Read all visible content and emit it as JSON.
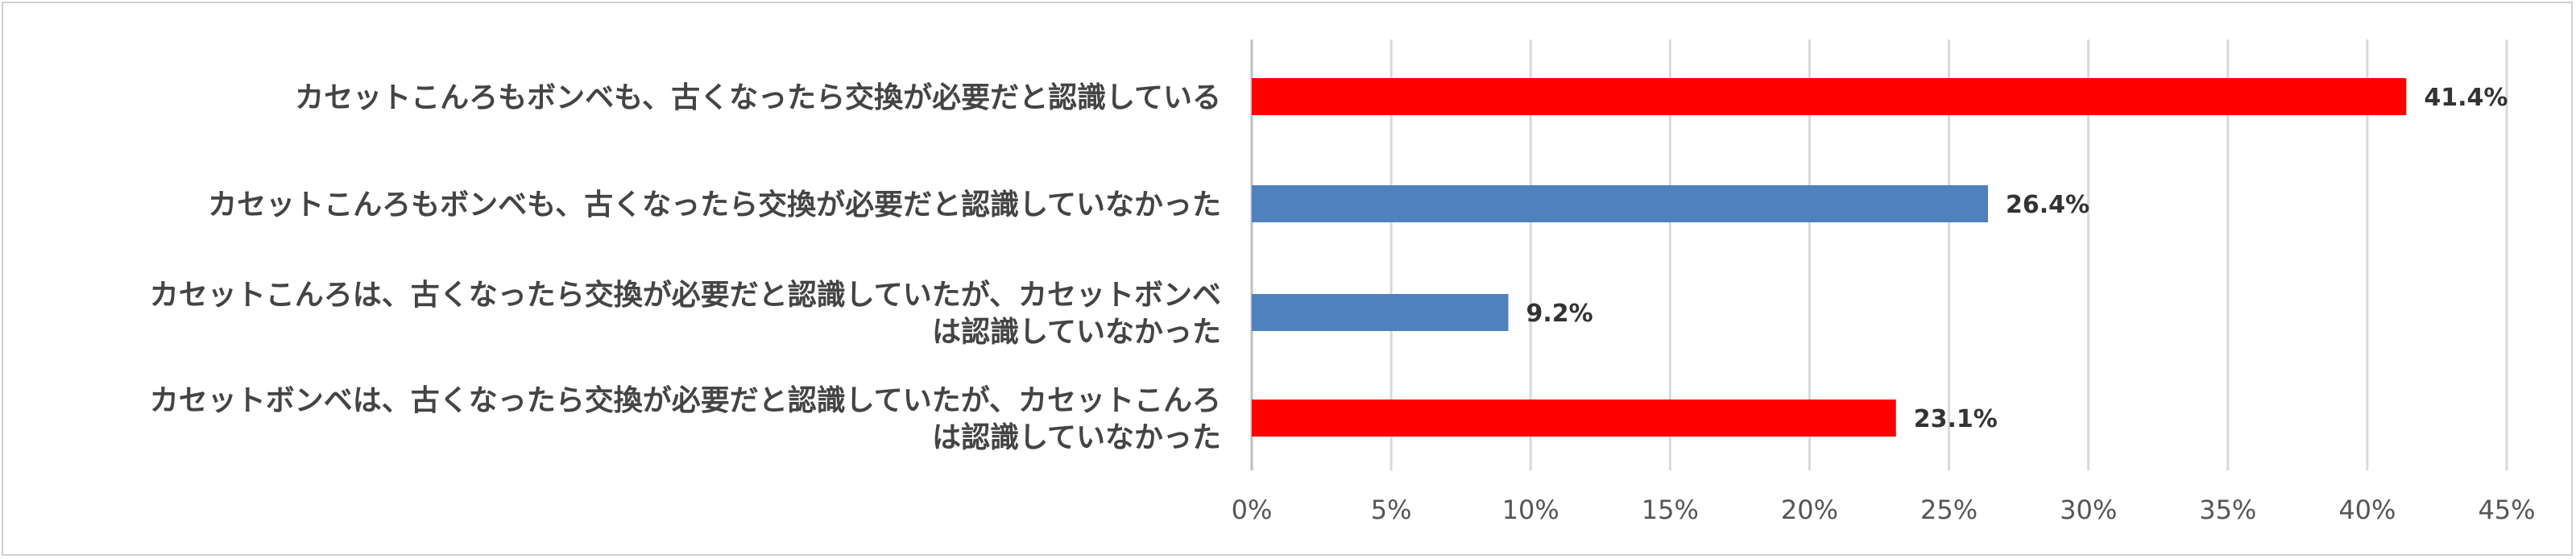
{
  "chart_data": {
    "type": "bar",
    "orientation": "horizontal",
    "title": "",
    "xlabel": "",
    "ylabel": "",
    "xlim": [
      0,
      45
    ],
    "x_ticks": [
      0,
      5,
      10,
      15,
      20,
      25,
      30,
      35,
      40,
      45
    ],
    "x_tick_labels": [
      "0%",
      "5%",
      "10%",
      "15%",
      "20%",
      "25%",
      "30%",
      "35%",
      "40%",
      "45%"
    ],
    "grid": true,
    "legend": "none",
    "categories": [
      {
        "lines": [
          "カセットこんろもボンベも、古くなったら交換が必要だと認識している"
        ],
        "value": 41.4,
        "value_label": "41.4%",
        "color": "#ff0000"
      },
      {
        "lines": [
          "カセットこんろもボンベも、古くなったら交換が必要だと認識していなかった"
        ],
        "value": 26.4,
        "value_label": "26.4%",
        "color": "#4f81bd"
      },
      {
        "lines": [
          "カセットこんろは、古くなったら交換が必要だと認識していたが、カセットボンベ",
          "は認識していなかった"
        ],
        "value": 9.2,
        "value_label": "9.2%",
        "color": "#4f81bd"
      },
      {
        "lines": [
          "カセットボンベは、古くなったら交換が必要だと認識していたが、カセットこんろ",
          "は認識していなかった"
        ],
        "value": 23.1,
        "value_label": "23.1%",
        "color": "#ff0000"
      }
    ]
  }
}
